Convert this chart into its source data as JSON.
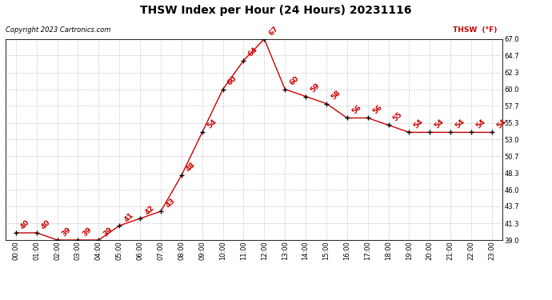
{
  "title": "THSW Index per Hour (24 Hours) 20231116",
  "copyright": "Copyright 2023 Cartronics.com",
  "legend_label": "THSW  (°F)",
  "hours": [
    "00:00",
    "01:00",
    "02:00",
    "03:00",
    "04:00",
    "05:00",
    "06:00",
    "07:00",
    "08:00",
    "09:00",
    "10:00",
    "11:00",
    "12:00",
    "13:00",
    "14:00",
    "15:00",
    "16:00",
    "17:00",
    "18:00",
    "19:00",
    "20:00",
    "21:00",
    "22:00",
    "23:00"
  ],
  "values": [
    40,
    40,
    39,
    39,
    39,
    41,
    42,
    43,
    48,
    54,
    60,
    64,
    67,
    60,
    59,
    58,
    56,
    56,
    55,
    54,
    54,
    54,
    54,
    54
  ],
  "line_color": "#cc0000",
  "marker_color": "#000000",
  "label_color": "#cc0000",
  "y_min": 39.0,
  "y_max": 67.0,
  "y_ticks": [
    39.0,
    41.3,
    43.7,
    46.0,
    48.3,
    50.7,
    53.0,
    55.3,
    57.7,
    60.0,
    62.3,
    64.7,
    67.0
  ],
  "background_color": "#ffffff",
  "grid_color": "#bbbbbb",
  "title_fontsize": 10,
  "label_fontsize": 6.5,
  "tick_fontsize": 6,
  "copyright_fontsize": 6
}
